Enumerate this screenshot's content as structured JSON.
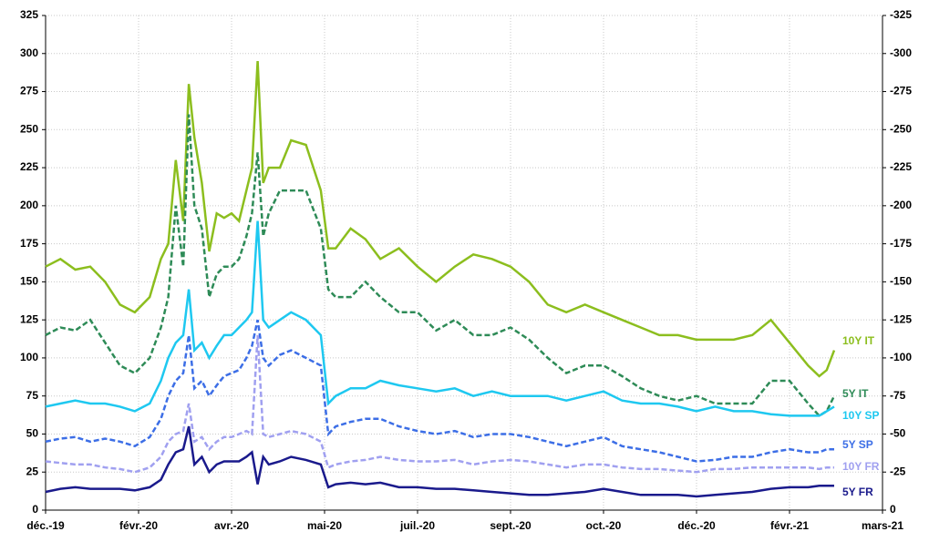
{
  "chart_data": {
    "type": "line",
    "x": [
      0,
      8,
      16,
      24,
      32,
      40,
      48,
      56,
      62,
      66,
      70,
      74,
      77,
      80,
      84,
      88,
      92,
      96,
      100,
      104,
      108,
      111,
      114,
      117,
      120,
      126,
      132,
      140,
      148,
      152,
      156,
      164,
      172,
      180,
      190,
      200,
      210,
      220,
      230,
      240,
      250,
      260,
      270,
      280,
      290,
      300,
      310,
      320,
      330,
      340,
      350,
      360,
      370,
      380,
      390,
      400,
      410,
      416,
      420,
      424
    ],
    "xlim": [
      0,
      450
    ],
    "xticks": [
      {
        "value": 0,
        "label": "déc.-19"
      },
      {
        "value": 50,
        "label": "févr.-20"
      },
      {
        "value": 100,
        "label": "avr.-20"
      },
      {
        "value": 150,
        "label": "mai-20"
      },
      {
        "value": 200,
        "label": "juil.-20"
      },
      {
        "value": 250,
        "label": "sept.-20"
      },
      {
        "value": 300,
        "label": "oct.-20"
      },
      {
        "value": 350,
        "label": "déc.-20"
      },
      {
        "value": 400,
        "label": "févr.-21"
      },
      {
        "value": 450,
        "label": "mars-21"
      }
    ],
    "ylim": [
      0,
      325
    ],
    "yticks": [
      0,
      25,
      50,
      75,
      100,
      125,
      150,
      175,
      200,
      225,
      250,
      275,
      300,
      325
    ],
    "y2lim": [
      0,
      -325
    ],
    "y2ticks": [
      0,
      -25,
      -50,
      -75,
      -100,
      -125,
      -150,
      -175,
      -200,
      -225,
      -250,
      -275,
      -300,
      -325
    ],
    "grid": true,
    "series": [
      {
        "name": "10Y IT",
        "color": "#8cbe1e",
        "dash": false,
        "values": [
          160,
          165,
          158,
          160,
          150,
          135,
          130,
          140,
          165,
          175,
          230,
          190,
          280,
          245,
          215,
          170,
          195,
          192,
          195,
          190,
          210,
          225,
          295,
          215,
          225,
          225,
          243,
          240,
          210,
          172,
          172,
          185,
          178,
          165,
          172,
          160,
          150,
          160,
          168,
          165,
          160,
          150,
          135,
          130,
          135,
          130,
          125,
          120,
          115,
          115,
          112,
          112,
          112,
          115,
          125,
          110,
          95,
          88,
          92,
          105
        ]
      },
      {
        "name": "5Y IT",
        "color": "#2e8b57",
        "dash": true,
        "values": [
          115,
          120,
          118,
          125,
          110,
          95,
          90,
          100,
          120,
          140,
          200,
          160,
          260,
          200,
          185,
          140,
          155,
          160,
          160,
          165,
          180,
          195,
          235,
          180,
          195,
          210,
          210,
          210,
          185,
          145,
          140,
          140,
          150,
          140,
          130,
          130,
          118,
          125,
          115,
          115,
          120,
          112,
          100,
          90,
          95,
          95,
          88,
          80,
          75,
          72,
          75,
          70,
          70,
          70,
          85,
          85,
          70,
          62,
          65,
          75
        ]
      },
      {
        "name": "10Y SP",
        "color": "#1ec8f0",
        "dash": false,
        "values": [
          68,
          70,
          72,
          70,
          70,
          68,
          65,
          70,
          85,
          100,
          110,
          115,
          145,
          105,
          110,
          100,
          108,
          115,
          115,
          120,
          125,
          130,
          190,
          125,
          120,
          125,
          130,
          125,
          115,
          70,
          75,
          80,
          80,
          85,
          82,
          80,
          78,
          80,
          75,
          78,
          75,
          75,
          75,
          72,
          75,
          78,
          72,
          70,
          70,
          68,
          65,
          68,
          65,
          65,
          63,
          62,
          62,
          62,
          65,
          68
        ]
      },
      {
        "name": "5Y SP",
        "color": "#3c6ee6",
        "dash": true,
        "values": [
          45,
          47,
          48,
          45,
          47,
          45,
          42,
          48,
          60,
          75,
          85,
          90,
          115,
          80,
          85,
          75,
          82,
          88,
          90,
          92,
          100,
          108,
          125,
          100,
          95,
          102,
          105,
          100,
          95,
          50,
          55,
          58,
          60,
          60,
          55,
          52,
          50,
          52,
          48,
          50,
          50,
          48,
          45,
          42,
          45,
          48,
          42,
          40,
          38,
          35,
          32,
          33,
          35,
          35,
          38,
          40,
          38,
          38,
          40,
          40
        ]
      },
      {
        "name": "10Y FR",
        "color": "#a0a0f0",
        "dash": true,
        "values": [
          32,
          31,
          30,
          30,
          28,
          27,
          25,
          28,
          35,
          45,
          50,
          52,
          70,
          45,
          48,
          40,
          45,
          48,
          48,
          50,
          52,
          50,
          115,
          50,
          48,
          50,
          52,
          50,
          45,
          28,
          30,
          32,
          33,
          35,
          33,
          32,
          32,
          33,
          30,
          32,
          33,
          32,
          30,
          28,
          30,
          30,
          28,
          27,
          27,
          26,
          25,
          27,
          27,
          28,
          28,
          28,
          28,
          27,
          28,
          28
        ]
      },
      {
        "name": "5Y FR",
        "color": "#1a1a8c",
        "dash": false,
        "values": [
          12,
          14,
          15,
          14,
          14,
          14,
          13,
          15,
          20,
          30,
          38,
          40,
          55,
          30,
          35,
          25,
          30,
          32,
          32,
          32,
          35,
          38,
          17,
          35,
          30,
          32,
          35,
          33,
          30,
          15,
          17,
          18,
          17,
          18,
          15,
          15,
          14,
          14,
          13,
          12,
          11,
          10,
          10,
          11,
          12,
          14,
          12,
          10,
          10,
          10,
          9,
          10,
          11,
          12,
          14,
          15,
          15,
          16,
          16,
          16
        ]
      }
    ]
  }
}
